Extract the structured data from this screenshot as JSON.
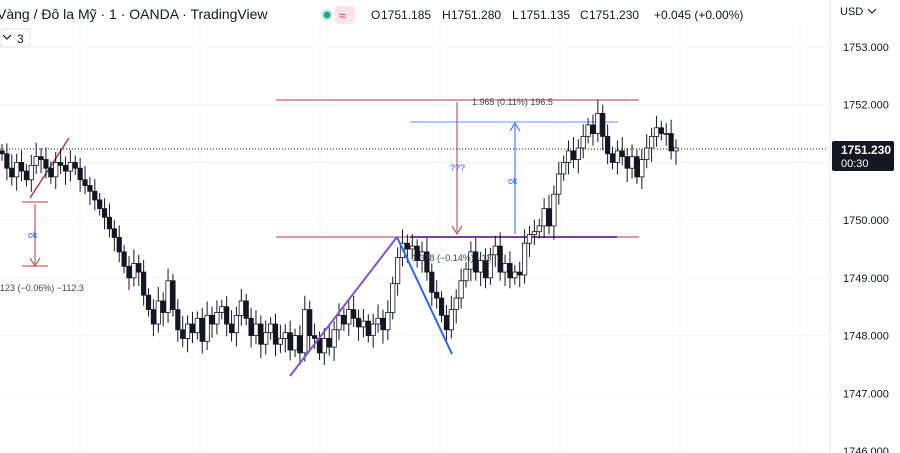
{
  "header": {
    "title": "Vàng / Đô la Mỹ · 1 · OANDA · TradingView",
    "indicator_badge": "≈",
    "ohlc": {
      "o_label": "O",
      "o": "1751.185",
      "h_label": "H",
      "h": "1751.280",
      "l_label": "L",
      "l": "1751.135",
      "c_label": "C",
      "c": "1751.230",
      "change": "+0.045 (+0.00%)"
    },
    "currency": "USD",
    "interval_count": "3"
  },
  "price_axis": {
    "ticks": [
      "1753.000",
      "1752.000",
      "1751.000",
      "1750.000",
      "1749.000",
      "1748.000",
      "1747.000",
      "1746.000"
    ],
    "last_price": "1751.230",
    "countdown": "00:30"
  },
  "annotations": {
    "left_measure_label": "ok",
    "left_measure_text": "123 (−0.06%) −112.3",
    "upper_box_text": "1.965 (0.11%) 196.5",
    "mid_measure_text": "1.378 (−0.14%) −13",
    "question_label": "???",
    "right_measure_label": "ok"
  },
  "colors": {
    "up": "#ffffff",
    "down": "#131722",
    "outline": "#131722",
    "fib": "#b0394c",
    "blue": "#2962ff",
    "purple": "#7e57c2",
    "fib_mid": "#7b3fa0"
  },
  "chart_data": {
    "type": "candlestick",
    "symbol": "XAUUSD",
    "interval": "1",
    "ylim": [
      1746.0,
      1753.4
    ],
    "y_ticks": [
      1753,
      1752,
      1751,
      1750,
      1749,
      1748,
      1747,
      1746
    ],
    "last_price": 1751.23,
    "closes": [
      1751.15,
      1750.9,
      1750.75,
      1751.0,
      1750.85,
      1750.7,
      1750.95,
      1751.1,
      1751.05,
      1750.9,
      1750.75,
      1751.0,
      1750.95,
      1750.85,
      1751.0,
      1750.9,
      1750.7,
      1750.6,
      1750.5,
      1750.35,
      1750.2,
      1750.05,
      1749.85,
      1749.7,
      1749.45,
      1749.2,
      1749.0,
      1749.25,
      1749.1,
      1748.7,
      1748.45,
      1748.2,
      1748.6,
      1748.4,
      1748.95,
      1748.45,
      1748.1,
      1747.95,
      1748.2,
      1748.05,
      1748.3,
      1747.9,
      1748.35,
      1748.2,
      1748.4,
      1748.5,
      1748.2,
      1748.05,
      1748.35,
      1748.6,
      1748.3,
      1748.0,
      1748.2,
      1747.85,
      1748.05,
      1748.2,
      1747.85,
      1747.95,
      1748.05,
      1747.75,
      1748.0,
      1747.7,
      1748.45,
      1748.0,
      1747.95,
      1747.7,
      1747.95,
      1747.8,
      1748.1,
      1748.35,
      1748.2,
      1748.45,
      1748.3,
      1748.15,
      1748.25,
      1748.0,
      1748.2,
      1748.3,
      1748.1,
      1748.4,
      1748.9,
      1749.35,
      1749.6,
      1749.5,
      1749.55,
      1749.3,
      1749.45,
      1749.1,
      1748.75,
      1748.65,
      1748.35,
      1748.1,
      1748.45,
      1748.65,
      1748.95,
      1749.15,
      1749.45,
      1749.1,
      1749.3,
      1749.0,
      1749.4,
      1749.55,
      1749.1,
      1749.25,
      1749.0,
      1749.1,
      1749.05,
      1749.6,
      1749.75,
      1749.8,
      1749.9,
      1750.2,
      1749.9,
      1750.45,
      1750.8,
      1751.0,
      1751.2,
      1751.05,
      1751.25,
      1751.45,
      1751.65,
      1751.5,
      1751.85,
      1751.45,
      1751.15,
      1751.0,
      1751.2,
      1751.1,
      1750.9,
      1751.1,
      1750.75,
      1751.05,
      1751.25,
      1751.45,
      1751.6,
      1751.5,
      1751.5,
      1751.2,
      1751.25
    ]
  }
}
